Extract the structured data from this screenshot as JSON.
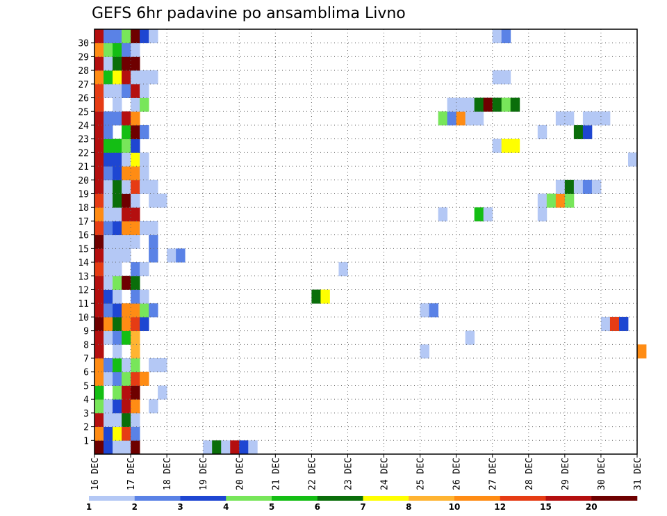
{
  "chart_data": {
    "type": "heatmap",
    "title": "GEFS 6hr padavine po ansamblima Livno",
    "x_tick_labels": [
      "16 DEC",
      "17 DEC",
      "18 DEC",
      "19 DEC",
      "20 DEC",
      "21 DEC",
      "22 DEC",
      "23 DEC",
      "24 DEC",
      "25 DEC",
      "26 DEC",
      "27 DEC",
      "28 DEC",
      "29 DEC",
      "30 DEC",
      "31 DEC"
    ],
    "y_tick_labels": [
      "1",
      "2",
      "3",
      "4",
      "5",
      "6",
      "7",
      "8",
      "9",
      "10",
      "11",
      "12",
      "13",
      "14",
      "15",
      "16",
      "17",
      "18",
      "19",
      "20",
      "21",
      "22",
      "23",
      "24",
      "25",
      "26",
      "27",
      "28",
      "29",
      "30"
    ],
    "ylim": [
      0,
      30
    ],
    "grid": true,
    "colorbar": {
      "labels": [
        "1",
        "2",
        "3",
        "4",
        "5",
        "6",
        "7",
        "8",
        "10",
        "12",
        "15",
        "20"
      ],
      "colors": [
        "#b4c8f5",
        "#5a82e6",
        "#1e46d2",
        "#78e65a",
        "#14be14",
        "#0a6e0a",
        "#ffff00",
        "#ffb432",
        "#ff8c14",
        "#e63c14",
        "#b40f0f",
        "#6e0000"
      ]
    },
    "cells": [
      {
        "member": 0,
        "t": 0,
        "c": 11
      },
      {
        "member": 0,
        "t": 1,
        "c": 2
      },
      {
        "member": 0,
        "t": 2,
        "c": 0
      },
      {
        "member": 0,
        "t": 3,
        "c": 0
      },
      {
        "member": 0,
        "t": 4,
        "c": 11
      },
      {
        "member": 0,
        "t": 12,
        "c": 0
      },
      {
        "member": 0,
        "t": 13,
        "c": 5
      },
      {
        "member": 0,
        "t": 14,
        "c": 0
      },
      {
        "member": 0,
        "t": 15,
        "c": 10
      },
      {
        "member": 0,
        "t": 16,
        "c": 2
      },
      {
        "member": 0,
        "t": 17,
        "c": 0
      },
      {
        "member": 1,
        "t": 0,
        "c": 8
      },
      {
        "member": 1,
        "t": 1,
        "c": 2
      },
      {
        "member": 1,
        "t": 2,
        "c": 6
      },
      {
        "member": 1,
        "t": 3,
        "c": 9
      },
      {
        "member": 1,
        "t": 4,
        "c": 1
      },
      {
        "member": 2,
        "t": 0,
        "c": 10
      },
      {
        "member": 2,
        "t": 1,
        "c": 0
      },
      {
        "member": 2,
        "t": 2,
        "c": 0
      },
      {
        "member": 2,
        "t": 3,
        "c": 5
      },
      {
        "member": 2,
        "t": 4,
        "c": 0
      },
      {
        "member": 3,
        "t": 0,
        "c": 3
      },
      {
        "member": 3,
        "t": 1,
        "c": 0
      },
      {
        "member": 3,
        "t": 2,
        "c": 2
      },
      {
        "member": 3,
        "t": 3,
        "c": 10
      },
      {
        "member": 3,
        "t": 4,
        "c": 8
      },
      {
        "member": 3,
        "t": 6,
        "c": 0
      },
      {
        "member": 4,
        "t": 0,
        "c": 4
      },
      {
        "member": 4,
        "t": 2,
        "c": 3
      },
      {
        "member": 4,
        "t": 3,
        "c": 10
      },
      {
        "member": 4,
        "t": 4,
        "c": 11
      },
      {
        "member": 4,
        "t": 7,
        "c": 0
      },
      {
        "member": 5,
        "t": 0,
        "c": 8
      },
      {
        "member": 5,
        "t": 1,
        "c": 0
      },
      {
        "member": 5,
        "t": 2,
        "c": 1
      },
      {
        "member": 5,
        "t": 3,
        "c": 3
      },
      {
        "member": 5,
        "t": 4,
        "c": 9
      },
      {
        "member": 5,
        "t": 5,
        "c": 8
      },
      {
        "member": 6,
        "t": 0,
        "c": 8
      },
      {
        "member": 6,
        "t": 1,
        "c": 1
      },
      {
        "member": 6,
        "t": 2,
        "c": 4
      },
      {
        "member": 6,
        "t": 3,
        "c": 0
      },
      {
        "member": 6,
        "t": 4,
        "c": 3
      },
      {
        "member": 6,
        "t": 6,
        "c": 0
      },
      {
        "member": 6,
        "t": 7,
        "c": 0
      },
      {
        "member": 7,
        "t": 0,
        "c": 10
      },
      {
        "member": 7,
        "t": 2,
        "c": 0
      },
      {
        "member": 7,
        "t": 4,
        "c": 7
      },
      {
        "member": 7,
        "t": 36,
        "c": 0
      },
      {
        "member": 7,
        "t": 60,
        "c": 8
      },
      {
        "member": 8,
        "t": 0,
        "c": 10
      },
      {
        "member": 8,
        "t": 1,
        "c": 0
      },
      {
        "member": 8,
        "t": 2,
        "c": 1
      },
      {
        "member": 8,
        "t": 3,
        "c": 4
      },
      {
        "member": 8,
        "t": 4,
        "c": 7
      },
      {
        "member": 8,
        "t": 41,
        "c": 0
      },
      {
        "member": 9,
        "t": 0,
        "c": 11
      },
      {
        "member": 9,
        "t": 1,
        "c": 8
      },
      {
        "member": 9,
        "t": 2,
        "c": 5
      },
      {
        "member": 9,
        "t": 3,
        "c": 8
      },
      {
        "member": 9,
        "t": 4,
        "c": 9
      },
      {
        "member": 9,
        "t": 5,
        "c": 2
      },
      {
        "member": 9,
        "t": 56,
        "c": 0
      },
      {
        "member": 9,
        "t": 57,
        "c": 9
      },
      {
        "member": 9,
        "t": 58,
        "c": 2
      },
      {
        "member": 10,
        "t": 0,
        "c": 10
      },
      {
        "member": 10,
        "t": 1,
        "c": 1
      },
      {
        "member": 10,
        "t": 2,
        "c": 2
      },
      {
        "member": 10,
        "t": 3,
        "c": 8
      },
      {
        "member": 10,
        "t": 4,
        "c": 8
      },
      {
        "member": 10,
        "t": 5,
        "c": 3
      },
      {
        "member": 10,
        "t": 6,
        "c": 1
      },
      {
        "member": 10,
        "t": 36,
        "c": 0
      },
      {
        "member": 10,
        "t": 37,
        "c": 1
      },
      {
        "member": 11,
        "t": 0,
        "c": 10
      },
      {
        "member": 11,
        "t": 1,
        "c": 2
      },
      {
        "member": 11,
        "t": 2,
        "c": 0
      },
      {
        "member": 11,
        "t": 4,
        "c": 1
      },
      {
        "member": 11,
        "t": 5,
        "c": 0
      },
      {
        "member": 11,
        "t": 24,
        "c": 5
      },
      {
        "member": 11,
        "t": 25,
        "c": 6
      },
      {
        "member": 12,
        "t": 0,
        "c": 10
      },
      {
        "member": 12,
        "t": 1,
        "c": 0
      },
      {
        "member": 12,
        "t": 2,
        "c": 3
      },
      {
        "member": 12,
        "t": 3,
        "c": 11
      },
      {
        "member": 12,
        "t": 4,
        "c": 5
      },
      {
        "member": 13,
        "t": 0,
        "c": 9
      },
      {
        "member": 13,
        "t": 1,
        "c": 0
      },
      {
        "member": 13,
        "t": 2,
        "c": 0
      },
      {
        "member": 13,
        "t": 4,
        "c": 1
      },
      {
        "member": 13,
        "t": 5,
        "c": 0
      },
      {
        "member": 13,
        "t": 27,
        "c": 0
      },
      {
        "member": 14,
        "t": 0,
        "c": 10
      },
      {
        "member": 14,
        "t": 1,
        "c": 0
      },
      {
        "member": 14,
        "t": 2,
        "c": 0
      },
      {
        "member": 14,
        "t": 3,
        "c": 0
      },
      {
        "member": 14,
        "t": 6,
        "c": 1
      },
      {
        "member": 14,
        "t": 8,
        "c": 0
      },
      {
        "member": 14,
        "t": 9,
        "c": 1
      },
      {
        "member": 15,
        "t": 0,
        "c": 11
      },
      {
        "member": 15,
        "t": 1,
        "c": 0
      },
      {
        "member": 15,
        "t": 2,
        "c": 0
      },
      {
        "member": 15,
        "t": 3,
        "c": 0
      },
      {
        "member": 15,
        "t": 4,
        "c": 0
      },
      {
        "member": 15,
        "t": 6,
        "c": 1
      },
      {
        "member": 16,
        "t": 0,
        "c": 9
      },
      {
        "member": 16,
        "t": 1,
        "c": 1
      },
      {
        "member": 16,
        "t": 2,
        "c": 2
      },
      {
        "member": 16,
        "t": 3,
        "c": 8
      },
      {
        "member": 16,
        "t": 4,
        "c": 8
      },
      {
        "member": 16,
        "t": 5,
        "c": 0
      },
      {
        "member": 16,
        "t": 6,
        "c": 0
      },
      {
        "member": 17,
        "t": 0,
        "c": 8
      },
      {
        "member": 17,
        "t": 1,
        "c": 0
      },
      {
        "member": 17,
        "t": 2,
        "c": 0
      },
      {
        "member": 17,
        "t": 3,
        "c": 10
      },
      {
        "member": 17,
        "t": 4,
        "c": 10
      },
      {
        "member": 17,
        "t": 38,
        "c": 0
      },
      {
        "member": 17,
        "t": 42,
        "c": 4
      },
      {
        "member": 17,
        "t": 43,
        "c": 0
      },
      {
        "member": 17,
        "t": 49,
        "c": 0
      },
      {
        "member": 18,
        "t": 0,
        "c": 9
      },
      {
        "member": 18,
        "t": 1,
        "c": 0
      },
      {
        "member": 18,
        "t": 2,
        "c": 5
      },
      {
        "member": 18,
        "t": 3,
        "c": 11
      },
      {
        "member": 18,
        "t": 4,
        "c": 0
      },
      {
        "member": 18,
        "t": 6,
        "c": 0
      },
      {
        "member": 18,
        "t": 7,
        "c": 0
      },
      {
        "member": 18,
        "t": 49,
        "c": 0
      },
      {
        "member": 18,
        "t": 50,
        "c": 3
      },
      {
        "member": 18,
        "t": 51,
        "c": 8
      },
      {
        "member": 18,
        "t": 52,
        "c": 3
      },
      {
        "member": 19,
        "t": 0,
        "c": 10
      },
      {
        "member": 19,
        "t": 1,
        "c": 0
      },
      {
        "member": 19,
        "t": 2,
        "c": 5
      },
      {
        "member": 19,
        "t": 3,
        "c": 0
      },
      {
        "member": 19,
        "t": 4,
        "c": 9
      },
      {
        "member": 19,
        "t": 5,
        "c": 0
      },
      {
        "member": 19,
        "t": 6,
        "c": 0
      },
      {
        "member": 19,
        "t": 51,
        "c": 0
      },
      {
        "member": 19,
        "t": 52,
        "c": 5
      },
      {
        "member": 19,
        "t": 53,
        "c": 0
      },
      {
        "member": 19,
        "t": 54,
        "c": 1
      },
      {
        "member": 19,
        "t": 55,
        "c": 0
      },
      {
        "member": 20,
        "t": 0,
        "c": 10
      },
      {
        "member": 20,
        "t": 1,
        "c": 1
      },
      {
        "member": 20,
        "t": 2,
        "c": 2
      },
      {
        "member": 20,
        "t": 3,
        "c": 8
      },
      {
        "member": 20,
        "t": 4,
        "c": 8
      },
      {
        "member": 20,
        "t": 5,
        "c": 0
      },
      {
        "member": 21,
        "t": 0,
        "c": 10
      },
      {
        "member": 21,
        "t": 1,
        "c": 2
      },
      {
        "member": 21,
        "t": 2,
        "c": 2
      },
      {
        "member": 21,
        "t": 3,
        "c": 0
      },
      {
        "member": 21,
        "t": 4,
        "c": 6
      },
      {
        "member": 21,
        "t": 5,
        "c": 0
      },
      {
        "member": 21,
        "t": 59,
        "c": 0
      },
      {
        "member": 22,
        "t": 0,
        "c": 10
      },
      {
        "member": 22,
        "t": 1,
        "c": 4
      },
      {
        "member": 22,
        "t": 2,
        "c": 4
      },
      {
        "member": 22,
        "t": 3,
        "c": 3
      },
      {
        "member": 22,
        "t": 4,
        "c": 2
      },
      {
        "member": 22,
        "t": 44,
        "c": 0
      },
      {
        "member": 22,
        "t": 45,
        "c": 6
      },
      {
        "member": 22,
        "t": 46,
        "c": 6
      },
      {
        "member": 23,
        "t": 0,
        "c": 10
      },
      {
        "member": 23,
        "t": 1,
        "c": 1
      },
      {
        "member": 23,
        "t": 3,
        "c": 4
      },
      {
        "member": 23,
        "t": 4,
        "c": 11
      },
      {
        "member": 23,
        "t": 5,
        "c": 1
      },
      {
        "member": 23,
        "t": 49,
        "c": 0
      },
      {
        "member": 23,
        "t": 53,
        "c": 5
      },
      {
        "member": 23,
        "t": 54,
        "c": 2
      },
      {
        "member": 24,
        "t": 0,
        "c": 10
      },
      {
        "member": 24,
        "t": 1,
        "c": 1
      },
      {
        "member": 24,
        "t": 2,
        "c": 1
      },
      {
        "member": 24,
        "t": 3,
        "c": 10
      },
      {
        "member": 24,
        "t": 4,
        "c": 8
      },
      {
        "member": 24,
        "t": 38,
        "c": 3
      },
      {
        "member": 24,
        "t": 39,
        "c": 1
      },
      {
        "member": 24,
        "t": 40,
        "c": 8
      },
      {
        "member": 24,
        "t": 41,
        "c": 0
      },
      {
        "member": 24,
        "t": 42,
        "c": 0
      },
      {
        "member": 24,
        "t": 51,
        "c": 0
      },
      {
        "member": 24,
        "t": 52,
        "c": 0
      },
      {
        "member": 24,
        "t": 54,
        "c": 0
      },
      {
        "member": 24,
        "t": 55,
        "c": 0
      },
      {
        "member": 24,
        "t": 56,
        "c": 0
      },
      {
        "member": 25,
        "t": 0,
        "c": 9
      },
      {
        "member": 25,
        "t": 2,
        "c": 0
      },
      {
        "member": 25,
        "t": 4,
        "c": 0
      },
      {
        "member": 25,
        "t": 5,
        "c": 3
      },
      {
        "member": 25,
        "t": 39,
        "c": 0
      },
      {
        "member": 25,
        "t": 40,
        "c": 0
      },
      {
        "member": 25,
        "t": 41,
        "c": 0
      },
      {
        "member": 25,
        "t": 42,
        "c": 5
      },
      {
        "member": 25,
        "t": 43,
        "c": 11
      },
      {
        "member": 25,
        "t": 44,
        "c": 5
      },
      {
        "member": 25,
        "t": 45,
        "c": 3
      },
      {
        "member": 25,
        "t": 46,
        "c": 5
      },
      {
        "member": 26,
        "t": 0,
        "c": 9
      },
      {
        "member": 26,
        "t": 1,
        "c": 0
      },
      {
        "member": 26,
        "t": 2,
        "c": 0
      },
      {
        "member": 26,
        "t": 3,
        "c": 1
      },
      {
        "member": 26,
        "t": 4,
        "c": 10
      },
      {
        "member": 26,
        "t": 5,
        "c": 0
      },
      {
        "member": 27,
        "t": 0,
        "c": 8
      },
      {
        "member": 27,
        "t": 1,
        "c": 4
      },
      {
        "member": 27,
        "t": 2,
        "c": 6
      },
      {
        "member": 27,
        "t": 3,
        "c": 10
      },
      {
        "member": 27,
        "t": 4,
        "c": 0
      },
      {
        "member": 27,
        "t": 5,
        "c": 0
      },
      {
        "member": 27,
        "t": 6,
        "c": 0
      },
      {
        "member": 27,
        "t": 44,
        "c": 0
      },
      {
        "member": 27,
        "t": 45,
        "c": 0
      },
      {
        "member": 28,
        "t": 0,
        "c": 10
      },
      {
        "member": 28,
        "t": 1,
        "c": 0
      },
      {
        "member": 28,
        "t": 2,
        "c": 5
      },
      {
        "member": 28,
        "t": 3,
        "c": 11
      },
      {
        "member": 28,
        "t": 4,
        "c": 11
      },
      {
        "member": 29,
        "t": 0,
        "c": 8
      },
      {
        "member": 29,
        "t": 1,
        "c": 3
      },
      {
        "member": 29,
        "t": 2,
        "c": 4
      },
      {
        "member": 29,
        "t": 3,
        "c": 1
      },
      {
        "member": 29,
        "t": 4,
        "c": 0
      },
      {
        "member": 30,
        "t": 0,
        "c": 10
      },
      {
        "member": 30,
        "t": 1,
        "c": 1
      },
      {
        "member": 30,
        "t": 2,
        "c": 1
      },
      {
        "member": 30,
        "t": 3,
        "c": 3
      },
      {
        "member": 30,
        "t": 4,
        "c": 11
      },
      {
        "member": 30,
        "t": 5,
        "c": 2
      },
      {
        "member": 30,
        "t": 6,
        "c": 0
      },
      {
        "member": 30,
        "t": 44,
        "c": 0
      },
      {
        "member": 30,
        "t": 45,
        "c": 1
      }
    ]
  }
}
